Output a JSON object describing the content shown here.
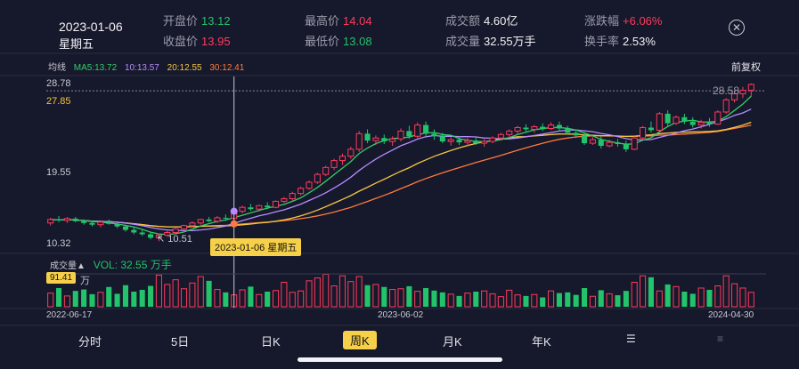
{
  "header": {
    "date": "2023-01-06",
    "weekday": "星期五",
    "open": {
      "label": "开盘价",
      "value": "13.12"
    },
    "close": {
      "label": "收盘价",
      "value": "13.95"
    },
    "high": {
      "label": "最高价",
      "value": "14.04"
    },
    "low": {
      "label": "最低价",
      "value": "13.08"
    },
    "amount": {
      "label": "成交额",
      "value": "4.60亿"
    },
    "volume": {
      "label": "成交量",
      "value": "32.55万手"
    },
    "change": {
      "label": "涨跌幅",
      "value": "+6.06%"
    },
    "turnover": {
      "label": "换手率",
      "value": "2.53%"
    }
  },
  "ma_legend": {
    "label": "均线",
    "ma5": "MA5:13.72",
    "ma10": "10:13.57",
    "ma20": "20:12.55",
    "ma30": "30:12.41"
  },
  "adjust_label": "前复权",
  "price_axis": {
    "top": "28.78",
    "mid": "19.55",
    "bottom": "10.32",
    "ref": "27.85"
  },
  "labels": {
    "latest": "28.58",
    "low_mark": "10.51"
  },
  "tooltip": "2023-01-06 星期五",
  "volume_panel": {
    "btn": "成交量▲",
    "value": "VOL: 32.55 万手",
    "badge": "91.41",
    "unit": "万"
  },
  "x_axis": {
    "start": "2022-06-17",
    "mid": "2023-06-02",
    "end": "2024-04-30"
  },
  "tabs": [
    "分时",
    "5日",
    "日K",
    "周K",
    "月K",
    "年K"
  ],
  "active_tab": "周K",
  "colors": {
    "up": "#ff3b5c",
    "down": "#22c36a",
    "ma5": "#33cc66",
    "ma10": "#b48cff",
    "ma20": "#f5c542",
    "ma30": "#ff7a3d",
    "highlight": "#f7d04a"
  },
  "chart_data": {
    "type": "candlestick",
    "range": {
      "ylim": [
        10.32,
        28.78
      ]
    },
    "ohlc": [
      [
        12.6,
        13.2,
        12.3,
        13.0
      ],
      [
        13.0,
        13.4,
        12.7,
        12.9
      ],
      [
        12.9,
        13.3,
        12.6,
        13.1
      ],
      [
        13.1,
        13.3,
        12.7,
        12.8
      ],
      [
        12.8,
        13.0,
        12.4,
        12.6
      ],
      [
        12.6,
        12.9,
        12.2,
        12.4
      ],
      [
        12.4,
        12.8,
        12.1,
        12.7
      ],
      [
        12.7,
        13.0,
        12.4,
        12.5
      ],
      [
        12.5,
        12.7,
        12.0,
        12.2
      ],
      [
        12.2,
        12.4,
        11.6,
        11.8
      ],
      [
        11.8,
        12.1,
        11.3,
        11.5
      ],
      [
        11.5,
        11.8,
        11.1,
        11.3
      ],
      [
        11.3,
        11.6,
        10.7,
        10.9
      ],
      [
        10.9,
        11.4,
        10.5,
        11.2
      ],
      [
        11.2,
        11.7,
        11.0,
        11.5
      ],
      [
        11.5,
        12.0,
        11.3,
        11.9
      ],
      [
        11.9,
        12.4,
        11.7,
        12.3
      ],
      [
        12.3,
        12.8,
        12.1,
        12.6
      ],
      [
        12.6,
        13.1,
        12.4,
        13.0
      ],
      [
        13.0,
        13.3,
        12.7,
        12.8
      ],
      [
        12.8,
        13.4,
        12.6,
        13.2
      ],
      [
        13.2,
        13.6,
        12.9,
        13.1
      ],
      [
        13.12,
        14.04,
        13.08,
        13.95
      ],
      [
        13.95,
        14.6,
        13.7,
        14.4
      ],
      [
        14.4,
        14.8,
        14.0,
        14.2
      ],
      [
        14.2,
        14.7,
        13.9,
        14.6
      ],
      [
        14.6,
        15.0,
        14.2,
        14.4
      ],
      [
        14.4,
        15.2,
        14.3,
        15.1
      ],
      [
        15.1,
        15.6,
        14.9,
        15.4
      ],
      [
        15.4,
        16.2,
        15.2,
        16.0
      ],
      [
        16.0,
        16.8,
        15.8,
        16.6
      ],
      [
        16.6,
        17.5,
        16.4,
        17.3
      ],
      [
        17.3,
        18.4,
        17.1,
        18.2
      ],
      [
        18.2,
        19.2,
        18.0,
        19.0
      ],
      [
        19.0,
        20.0,
        18.7,
        19.8
      ],
      [
        19.8,
        20.6,
        19.3,
        20.3
      ],
      [
        20.3,
        21.4,
        20.0,
        21.1
      ],
      [
        21.1,
        23.2,
        20.8,
        22.9
      ],
      [
        22.9,
        23.4,
        21.8,
        22.1
      ],
      [
        22.1,
        22.7,
        21.6,
        22.4
      ],
      [
        22.4,
        22.8,
        21.7,
        22.0
      ],
      [
        22.0,
        22.6,
        21.5,
        22.3
      ],
      [
        22.3,
        23.5,
        22.0,
        23.2
      ],
      [
        23.2,
        23.8,
        22.3,
        22.6
      ],
      [
        22.6,
        24.2,
        22.4,
        23.9
      ],
      [
        23.9,
        24.3,
        22.6,
        22.9
      ],
      [
        22.9,
        23.4,
        22.2,
        22.6
      ],
      [
        22.6,
        23.0,
        21.8,
        22.0
      ],
      [
        22.0,
        22.5,
        21.5,
        22.2
      ],
      [
        22.2,
        22.6,
        21.6,
        21.9
      ],
      [
        21.9,
        22.4,
        21.4,
        22.1
      ],
      [
        22.1,
        22.5,
        21.6,
        21.8
      ],
      [
        21.8,
        22.3,
        21.4,
        22.0
      ],
      [
        22.0,
        22.6,
        21.8,
        22.4
      ],
      [
        22.4,
        23.0,
        22.1,
        22.8
      ],
      [
        22.8,
        23.4,
        22.5,
        23.2
      ],
      [
        23.2,
        23.8,
        22.9,
        23.6
      ],
      [
        23.6,
        24.0,
        23.0,
        23.4
      ],
      [
        23.4,
        23.9,
        23.0,
        23.7
      ],
      [
        23.7,
        24.1,
        23.2,
        23.5
      ],
      [
        23.5,
        24.2,
        23.3,
        23.9
      ],
      [
        23.9,
        24.3,
        23.2,
        23.5
      ],
      [
        23.5,
        23.8,
        22.8,
        23.0
      ],
      [
        23.0,
        23.4,
        22.4,
        22.7
      ],
      [
        22.7,
        23.1,
        21.6,
        21.8
      ],
      [
        21.8,
        22.5,
        21.6,
        22.2
      ],
      [
        22.2,
        22.6,
        21.2,
        21.5
      ],
      [
        21.5,
        22.2,
        21.3,
        21.9
      ],
      [
        21.9,
        22.3,
        21.4,
        21.7
      ],
      [
        21.7,
        22.1,
        20.8,
        21.1
      ],
      [
        21.1,
        22.6,
        21.0,
        22.4
      ],
      [
        22.4,
        23.8,
        22.2,
        23.6
      ],
      [
        23.6,
        24.3,
        23.0,
        23.3
      ],
      [
        23.3,
        25.4,
        23.1,
        25.2
      ],
      [
        25.2,
        25.6,
        23.8,
        24.1
      ],
      [
        24.1,
        25.0,
        23.9,
        24.8
      ],
      [
        24.8,
        25.2,
        24.0,
        24.3
      ],
      [
        24.3,
        24.8,
        23.6,
        23.9
      ],
      [
        23.9,
        24.5,
        23.5,
        24.2
      ],
      [
        24.2,
        24.7,
        23.7,
        24.0
      ],
      [
        24.0,
        25.6,
        23.9,
        25.4
      ],
      [
        25.4,
        27.0,
        25.2,
        26.8
      ],
      [
        26.8,
        27.8,
        26.5,
        27.5
      ],
      [
        27.5,
        28.3,
        27.0,
        27.9
      ],
      [
        27.9,
        28.7,
        27.2,
        28.58
      ]
    ],
    "volume": [
      38,
      52,
      30,
      44,
      48,
      35,
      40,
      55,
      36,
      60,
      42,
      47,
      58,
      88,
      62,
      75,
      50,
      66,
      84,
      72,
      48,
      40,
      33,
      47,
      56,
      34,
      42,
      45,
      68,
      40,
      44,
      72,
      80,
      90,
      58,
      86,
      70,
      84,
      60,
      62,
      55,
      48,
      50,
      57,
      43,
      52,
      45,
      40,
      35,
      30,
      38,
      42,
      44,
      36,
      28,
      46,
      33,
      30,
      34,
      26,
      44,
      38,
      40,
      33,
      52,
      29,
      46,
      36,
      32,
      44,
      68,
      86,
      82,
      44,
      62,
      56,
      42,
      36,
      52,
      47,
      58,
      86,
      64,
      52,
      40
    ]
  }
}
